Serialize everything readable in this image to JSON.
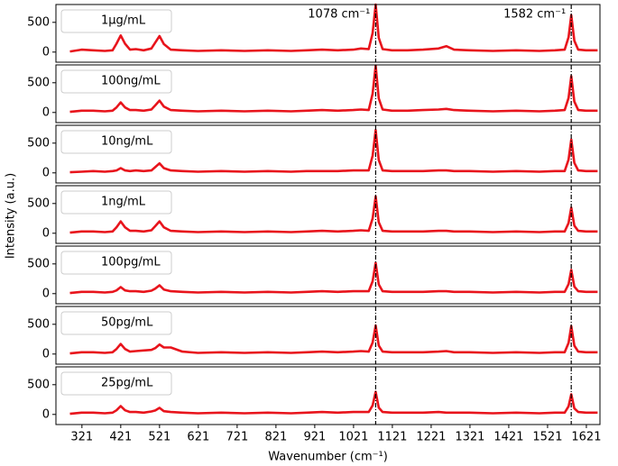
{
  "chart_data": [
    {
      "type": "line",
      "label": "1μg/mL",
      "color": "#e8141c",
      "vlines": [
        1078,
        1582
      ],
      "annotations": [
        {
          "text": "1078 cm⁻¹",
          "x": 1078
        },
        {
          "text": "1582 cm⁻¹",
          "x": 1582
        }
      ],
      "xlim": [
        254,
        1656
      ],
      "ylim": [
        -170,
        800
      ],
      "yticks": [
        0,
        500
      ],
      "x": [
        290,
        320,
        350,
        380,
        400,
        410,
        421,
        432,
        445,
        460,
        480,
        500,
        510,
        521,
        532,
        550,
        580,
        620,
        680,
        740,
        800,
        860,
        900,
        940,
        980,
        1020,
        1040,
        1060,
        1070,
        1078,
        1086,
        1096,
        1120,
        1160,
        1200,
        1240,
        1260,
        1280,
        1320,
        1380,
        1440,
        1500,
        1540,
        1565,
        1575,
        1582,
        1590,
        1600,
        1620,
        1650
      ],
      "values": [
        10,
        40,
        30,
        20,
        30,
        140,
        280,
        140,
        40,
        50,
        30,
        60,
        160,
        270,
        135,
        40,
        30,
        20,
        30,
        20,
        30,
        20,
        30,
        40,
        30,
        40,
        60,
        50,
        320,
        800,
        240,
        50,
        30,
        30,
        40,
        60,
        100,
        40,
        30,
        20,
        30,
        20,
        30,
        40,
        250,
        620,
        190,
        40,
        30,
        30
      ]
    },
    {
      "type": "line",
      "label": "100ng/mL",
      "color": "#e8141c",
      "vlines": [
        1078,
        1582
      ],
      "xlim": [
        254,
        1656
      ],
      "ylim": [
        -170,
        800
      ],
      "yticks": [
        0,
        500
      ],
      "x": [
        290,
        320,
        350,
        380,
        400,
        410,
        421,
        432,
        445,
        460,
        480,
        500,
        510,
        521,
        532,
        550,
        580,
        620,
        680,
        740,
        800,
        860,
        900,
        940,
        980,
        1020,
        1040,
        1060,
        1070,
        1078,
        1086,
        1096,
        1120,
        1160,
        1200,
        1240,
        1260,
        1280,
        1320,
        1380,
        1440,
        1500,
        1540,
        1565,
        1575,
        1582,
        1590,
        1600,
        1620,
        1650
      ],
      "values": [
        10,
        30,
        30,
        20,
        30,
        85,
        170,
        85,
        40,
        40,
        30,
        50,
        120,
        200,
        100,
        40,
        30,
        20,
        30,
        20,
        30,
        20,
        30,
        40,
        30,
        40,
        50,
        40,
        316,
        790,
        237,
        50,
        30,
        30,
        40,
        50,
        60,
        40,
        30,
        20,
        30,
        20,
        30,
        40,
        244,
        610,
        183,
        40,
        30,
        30
      ]
    },
    {
      "type": "line",
      "label": "10ng/mL",
      "color": "#e8141c",
      "vlines": [
        1078,
        1582
      ],
      "xlim": [
        254,
        1656
      ],
      "ylim": [
        -170,
        800
      ],
      "yticks": [
        0,
        500
      ],
      "x": [
        290,
        320,
        350,
        380,
        400,
        410,
        421,
        432,
        445,
        460,
        480,
        500,
        510,
        521,
        532,
        550,
        580,
        620,
        680,
        740,
        800,
        860,
        900,
        940,
        980,
        1020,
        1040,
        1060,
        1070,
        1078,
        1086,
        1096,
        1120,
        1160,
        1200,
        1240,
        1260,
        1280,
        1320,
        1380,
        1440,
        1500,
        1540,
        1565,
        1575,
        1582,
        1590,
        1600,
        1620,
        1650
      ],
      "values": [
        10,
        20,
        30,
        20,
        30,
        40,
        80,
        40,
        30,
        40,
        30,
        40,
        96,
        160,
        80,
        40,
        30,
        20,
        30,
        20,
        30,
        20,
        30,
        30,
        30,
        40,
        40,
        40,
        288,
        720,
        216,
        40,
        30,
        30,
        30,
        40,
        40,
        30,
        30,
        20,
        30,
        20,
        30,
        30,
        224,
        560,
        168,
        40,
        30,
        30
      ]
    },
    {
      "type": "line",
      "label": "1ng/mL",
      "color": "#e8141c",
      "vlines": [
        1078,
        1582
      ],
      "ylabel": "Intensity (a.u.)",
      "xlim": [
        254,
        1656
      ],
      "ylim": [
        -170,
        800
      ],
      "yticks": [
        0,
        500
      ],
      "x": [
        290,
        320,
        350,
        380,
        400,
        410,
        421,
        432,
        445,
        460,
        480,
        500,
        510,
        521,
        532,
        550,
        580,
        620,
        680,
        740,
        800,
        860,
        900,
        940,
        980,
        1020,
        1040,
        1060,
        1070,
        1078,
        1086,
        1096,
        1120,
        1160,
        1200,
        1240,
        1260,
        1280,
        1320,
        1380,
        1440,
        1500,
        1540,
        1565,
        1575,
        1582,
        1590,
        1600,
        1620,
        1650
      ],
      "values": [
        10,
        30,
        30,
        20,
        30,
        100,
        200,
        100,
        40,
        40,
        30,
        50,
        120,
        200,
        100,
        40,
        30,
        20,
        30,
        20,
        30,
        20,
        30,
        40,
        30,
        40,
        50,
        40,
        248,
        620,
        186,
        40,
        30,
        30,
        30,
        40,
        40,
        30,
        30,
        20,
        30,
        20,
        30,
        30,
        172,
        430,
        129,
        40,
        30,
        30
      ]
    },
    {
      "type": "line",
      "label": "100pg/mL",
      "color": "#e8141c",
      "vlines": [
        1078,
        1582
      ],
      "xlim": [
        254,
        1656
      ],
      "ylim": [
        -170,
        800
      ],
      "yticks": [
        0,
        500
      ],
      "x": [
        290,
        320,
        350,
        380,
        400,
        410,
        421,
        432,
        445,
        460,
        480,
        500,
        510,
        521,
        532,
        550,
        580,
        620,
        680,
        740,
        800,
        860,
        900,
        940,
        980,
        1020,
        1040,
        1060,
        1070,
        1078,
        1086,
        1096,
        1120,
        1160,
        1200,
        1240,
        1260,
        1280,
        1320,
        1380,
        1440,
        1500,
        1540,
        1565,
        1575,
        1582,
        1590,
        1600,
        1620,
        1650
      ],
      "values": [
        10,
        30,
        30,
        20,
        30,
        55,
        110,
        55,
        40,
        40,
        30,
        50,
        84,
        140,
        70,
        40,
        30,
        20,
        30,
        20,
        30,
        20,
        30,
        40,
        30,
        40,
        40,
        40,
        208,
        520,
        156,
        40,
        30,
        30,
        30,
        40,
        40,
        30,
        30,
        20,
        30,
        20,
        30,
        30,
        160,
        400,
        120,
        40,
        30,
        30
      ]
    },
    {
      "type": "line",
      "label": "50pg/mL",
      "color": "#e8141c",
      "vlines": [
        1078,
        1582
      ],
      "xlim": [
        254,
        1656
      ],
      "ylim": [
        -170,
        800
      ],
      "yticks": [
        0,
        500
      ],
      "x": [
        290,
        320,
        350,
        380,
        400,
        410,
        421,
        432,
        445,
        460,
        480,
        500,
        510,
        521,
        532,
        550,
        580,
        620,
        680,
        740,
        800,
        860,
        900,
        940,
        980,
        1020,
        1040,
        1060,
        1070,
        1078,
        1086,
        1096,
        1120,
        1160,
        1200,
        1240,
        1260,
        1280,
        1320,
        1380,
        1440,
        1500,
        1540,
        1565,
        1575,
        1582,
        1590,
        1600,
        1620,
        1650
      ],
      "values": [
        10,
        30,
        30,
        20,
        30,
        85,
        170,
        85,
        40,
        50,
        60,
        70,
        100,
        160,
        110,
        110,
        40,
        20,
        30,
        20,
        30,
        20,
        30,
        40,
        30,
        40,
        50,
        40,
        192,
        480,
        144,
        40,
        30,
        30,
        30,
        40,
        50,
        30,
        30,
        20,
        30,
        20,
        30,
        30,
        188,
        470,
        141,
        40,
        30,
        30
      ]
    },
    {
      "type": "line",
      "label": "25pg/mL",
      "color": "#e8141c",
      "vlines": [
        1078,
        1582
      ],
      "xlim": [
        254,
        1656
      ],
      "ylim": [
        -170,
        800
      ],
      "yticks": [
        0,
        500
      ],
      "xticks": [
        321,
        421,
        521,
        621,
        721,
        821,
        921,
        1021,
        1121,
        1221,
        1321,
        1421,
        1521,
        1621
      ],
      "xlabel": "Wavenumber (cm⁻¹)",
      "x": [
        290,
        320,
        350,
        380,
        400,
        410,
        421,
        432,
        445,
        460,
        480,
        500,
        510,
        521,
        532,
        550,
        580,
        620,
        680,
        740,
        800,
        860,
        900,
        940,
        980,
        1020,
        1040,
        1060,
        1070,
        1078,
        1086,
        1096,
        1120,
        1160,
        1200,
        1240,
        1260,
        1280,
        1320,
        1380,
        1440,
        1500,
        1540,
        1565,
        1575,
        1582,
        1590,
        1600,
        1620,
        1650
      ],
      "values": [
        10,
        30,
        30,
        20,
        30,
        70,
        140,
        70,
        40,
        40,
        30,
        50,
        66,
        110,
        55,
        40,
        30,
        20,
        30,
        20,
        30,
        20,
        30,
        40,
        30,
        40,
        40,
        40,
        152,
        380,
        114,
        40,
        30,
        30,
        30,
        40,
        30,
        30,
        30,
        20,
        30,
        20,
        30,
        30,
        136,
        340,
        102,
        40,
        30,
        30
      ]
    }
  ]
}
